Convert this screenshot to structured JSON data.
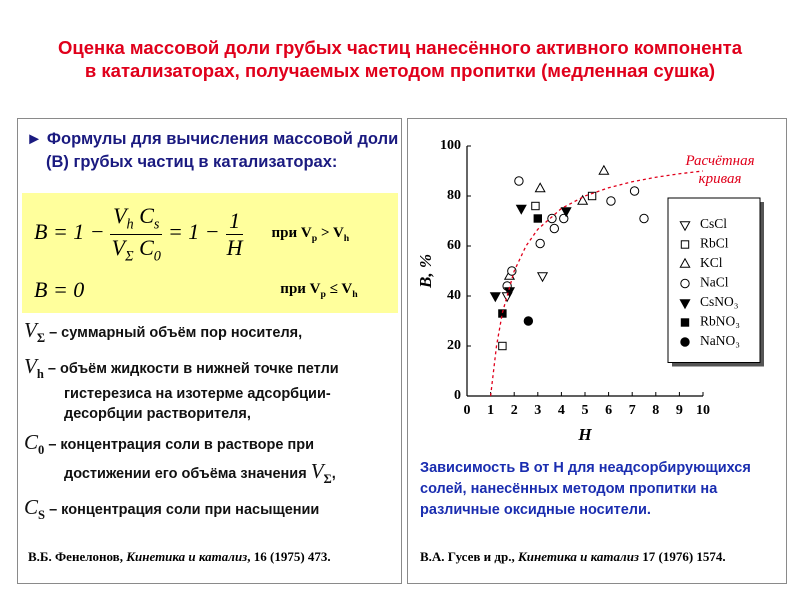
{
  "title": [
    "Оценка массовой доли грубых частиц нанесённого активного компонента",
    "в катализаторах, получаемых методом пропитки  (медленная сушка)"
  ],
  "left_panel": {
    "heading": "Формулы для вычисления массовой доли (B) грубых частиц в катализаторах:",
    "formula1": {
      "lhs": "B = 1 −",
      "num": [
        {
          "t": "V",
          "sub": "h"
        },
        {
          "t": "C",
          "sub": "s"
        }
      ],
      "den": [
        {
          "t": "V",
          "sub": "Σ"
        },
        {
          "t": "C",
          "sub": "0"
        }
      ],
      "mid": "= 1 −",
      "num2": "1",
      "den2": "H",
      "cond": [
        {
          "t": "при V",
          "sub": "p"
        },
        {
          "t": "> V",
          "sub": "h"
        }
      ]
    },
    "formula2": {
      "lhs": "B = 0",
      "cond": [
        {
          "t": "при V",
          "sub": "p"
        },
        {
          "t": "≤ V",
          "sub": "h"
        }
      ]
    },
    "definitions": [
      {
        "sym": "V",
        "sub": "Σ",
        "text": "– суммарный объём пор носителя,"
      },
      {
        "sym": "V",
        "sub": "h",
        "text": "– объём жидкости в нижней точке петли гистерезиса на изотерме адсорбции-десорбции растворителя,"
      },
      {
        "sym": "C",
        "sub": "0",
        "text": "– концентрация соли в растворе при достижении его объёма значения",
        "tail": {
          "t": "V",
          "sub": "Σ"
        },
        "end": ","
      },
      {
        "sym": "C",
        "sub": "S",
        "text": "– концентрация соли при насыщении"
      }
    ],
    "reference": {
      "authors": "В.Б. Фенелонов,",
      "journal": "Кинетика и катализ",
      "rest": ", 16 (1975) 473."
    }
  },
  "chart_data": {
    "type": "scatter",
    "xlabel": "H",
    "ylabel": "B, %",
    "xlim": [
      0,
      10
    ],
    "xticks": [
      0,
      1,
      2,
      3,
      4,
      5,
      6,
      7,
      8,
      9,
      10
    ],
    "ylim": [
      0,
      100
    ],
    "yticks": [
      0,
      20,
      40,
      60,
      80,
      100
    ],
    "legend": "right",
    "series": [
      {
        "name": "CsCl",
        "marker": "triangle-down",
        "filled": false,
        "color": "#000000",
        "x": [
          3.2,
          1.7
        ],
        "values": [
          48,
          40
        ]
      },
      {
        "name": "RbCl",
        "marker": "square",
        "filled": false,
        "color": "#000000",
        "x": [
          1.5,
          2.9,
          5.3
        ],
        "values": [
          20,
          76,
          80
        ]
      },
      {
        "name": "KCl",
        "marker": "triangle-up",
        "filled": false,
        "color": "#000000",
        "x": [
          3.1,
          5.8,
          1.8,
          4.9
        ],
        "values": [
          83,
          90,
          48,
          78
        ]
      },
      {
        "name": "NaCl",
        "marker": "circle",
        "filled": false,
        "color": "#000000",
        "x": [
          2.2,
          3.1,
          3.6,
          3.7,
          4.1,
          6.1,
          7.1,
          7.5,
          1.9,
          1.7
        ],
        "values": [
          86,
          61,
          71,
          67,
          71,
          78,
          82,
          71,
          50,
          44
        ]
      },
      {
        "name": "CsNO₃",
        "marker": "triangle-down",
        "filled": true,
        "color": "#000000",
        "x": [
          1.2,
          1.8,
          2.3,
          4.2
        ],
        "values": [
          40,
          42,
          75,
          74
        ]
      },
      {
        "name": "RbNO₃",
        "marker": "square",
        "filled": true,
        "color": "#000000",
        "x": [
          1.5,
          3.0
        ],
        "values": [
          33,
          71
        ]
      },
      {
        "name": "NaNO₃",
        "marker": "circle",
        "filled": true,
        "color": "#000000",
        "x": [
          2.6
        ],
        "values": [
          30
        ]
      },
      {
        "name": "Расчётная кривая",
        "marker": "dashed-line",
        "legend": false,
        "color": "#e0001b",
        "x": [
          1,
          1.25,
          1.5,
          2,
          2.5,
          3,
          4,
          5,
          6,
          7,
          8,
          9,
          10
        ],
        "values": [
          0,
          20,
          33.3,
          50,
          60,
          66.7,
          75,
          80,
          83.3,
          85.7,
          87.5,
          88.9,
          90
        ]
      }
    ]
  },
  "right_panel": {
    "caption": "Зависимость B от H для неадсорбирующихся солей, нанесённых методом пропитки на различные оксидные носители.",
    "reference": {
      "authors": "В.А. Гусев и др.,",
      "journal": "Кинетика и катализ",
      "rest": "17 (1976) 1574."
    }
  }
}
